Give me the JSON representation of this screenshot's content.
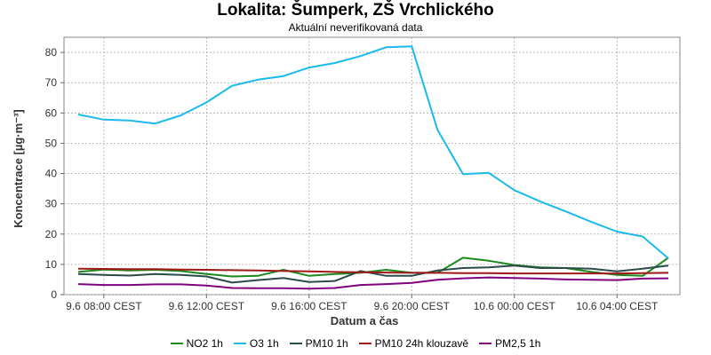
{
  "chart_data": {
    "type": "line",
    "title": "Lokalita: Šumperk, ZŠ Vrchlického",
    "subtitle": "Aktuální neverifikovaná data",
    "xlabel": "Datum a čas",
    "ylabel": "Koncentrace [µg·m⁻³]",
    "ylim": [
      0,
      85
    ],
    "yticks": [
      0,
      10,
      20,
      30,
      40,
      50,
      60,
      70,
      80
    ],
    "x": [
      "9.6 07:00",
      "9.6 08:00",
      "9.6 09:00",
      "9.6 10:00",
      "9.6 11:00",
      "9.6 12:00",
      "9.6 13:00",
      "9.6 14:00",
      "9.6 15:00",
      "9.6 16:00",
      "9.6 17:00",
      "9.6 18:00",
      "9.6 19:00",
      "9.6 20:00",
      "9.6 21:00",
      "9.6 22:00",
      "9.6 23:00",
      "10.6 00:00",
      "10.6 01:00",
      "10.6 02:00",
      "10.6 03:00",
      "10.6 04:00",
      "10.6 05:00",
      "10.6 06:00"
    ],
    "xticks": [
      {
        "index": 1,
        "label": "9.6 08:00 CEST"
      },
      {
        "index": 5,
        "label": "9.6 12:00 CEST"
      },
      {
        "index": 9,
        "label": "9.6 16:00 CEST"
      },
      {
        "index": 13,
        "label": "9.6 20:00 CEST"
      },
      {
        "index": 17,
        "label": "10.6 00:00 CEST"
      },
      {
        "index": 21,
        "label": "10.6 04:00 CEST"
      }
    ],
    "grid": true,
    "legend_position": "bottom",
    "series": [
      {
        "name": "NO2 1h",
        "color": "#1a8a1a",
        "values": [
          7.5,
          8.3,
          8.0,
          8.2,
          7.8,
          6.8,
          6.0,
          6.2,
          8.2,
          6.2,
          6.8,
          7.2,
          8.2,
          7.2,
          7.2,
          12.2,
          11.2,
          9.8,
          9.0,
          8.8,
          7.5,
          6.5,
          6.2,
          12.2
        ]
      },
      {
        "name": "O3 1h",
        "color": "#1ab9ee",
        "values": [
          59.5,
          57.8,
          57.5,
          56.5,
          59.2,
          63.5,
          69.0,
          71.0,
          72.2,
          75.0,
          76.5,
          78.8,
          81.7,
          82.0,
          54.5,
          39.8,
          40.2,
          34.5,
          30.8,
          27.5,
          24.0,
          20.8,
          19.2,
          12.0
        ]
      },
      {
        "name": "PM10 1h",
        "color": "#2b4b4b",
        "values": [
          6.8,
          6.5,
          6.3,
          6.8,
          6.5,
          6.0,
          4.0,
          4.8,
          5.5,
          4.2,
          4.5,
          7.8,
          6.2,
          6.2,
          8.0,
          8.8,
          9.0,
          9.6,
          8.8,
          8.8,
          8.6,
          7.7,
          8.6,
          9.6
        ]
      },
      {
        "name": "PM10 24h klouzavě",
        "color": "#a01818",
        "values": [
          8.6,
          8.5,
          8.4,
          8.4,
          8.3,
          8.2,
          8.1,
          8.0,
          7.8,
          7.7,
          7.5,
          7.4,
          7.3,
          7.2,
          7.2,
          7.1,
          7.1,
          7.0,
          7.0,
          7.0,
          7.0,
          7.0,
          7.1,
          7.2
        ]
      },
      {
        "name": "PM2,5 1h",
        "color": "#800080",
        "values": [
          3.5,
          3.2,
          3.2,
          3.4,
          3.4,
          3.0,
          2.2,
          2.1,
          2.1,
          2.0,
          2.2,
          3.2,
          3.5,
          3.9,
          4.9,
          5.4,
          5.7,
          5.5,
          5.3,
          5.0,
          4.9,
          4.8,
          5.3,
          5.4
        ]
      }
    ]
  }
}
